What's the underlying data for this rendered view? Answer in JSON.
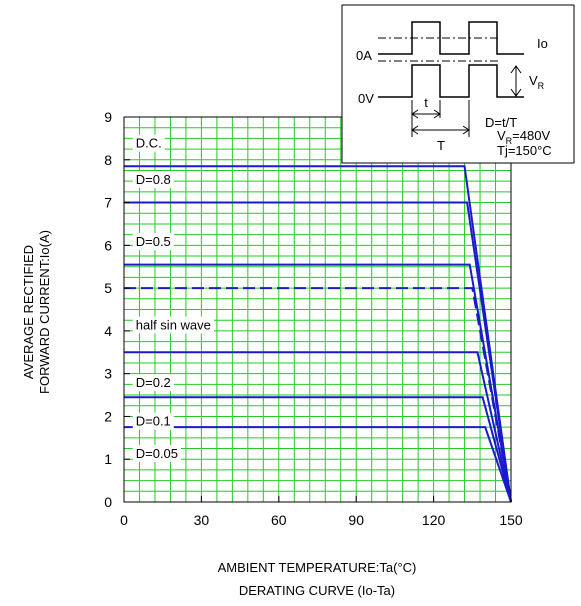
{
  "chart_data": {
    "type": "line",
    "xlabel": "AMBIENT TEMPERATURE:Ta(°C)",
    "caption": "DERATING  CURVE (Io-Ta)",
    "ylabel_line1": "AVERAGE RECTIFIED",
    "ylabel_line2": "FORWARD CURRENT:Io(A)",
    "xlim": [
      0,
      150
    ],
    "ylim": [
      0,
      9
    ],
    "xticks": [
      0,
      30,
      60,
      90,
      120,
      150
    ],
    "yticks": [
      0,
      1,
      2,
      3,
      4,
      5,
      6,
      7,
      8,
      9
    ],
    "grid": true,
    "colors": {
      "grid": "#22cc22",
      "line": "#1a1acc",
      "background": "#ffffff"
    },
    "series": [
      {
        "name": "D.C.",
        "x": [
          0,
          132,
          150
        ],
        "y": [
          7.85,
          7.85,
          0
        ]
      },
      {
        "name": "D=0.8",
        "x": [
          0,
          133,
          150
        ],
        "y": [
          7.0,
          7.0,
          0
        ]
      },
      {
        "name": "D=0.5",
        "x": [
          0,
          134,
          150
        ],
        "y": [
          5.55,
          5.55,
          0
        ]
      },
      {
        "name": "half sin wave",
        "style": "dashed",
        "x": [
          0,
          135,
          150
        ],
        "y": [
          5.0,
          5.0,
          0
        ]
      },
      {
        "name": "D=0.2",
        "x": [
          0,
          137,
          150
        ],
        "y": [
          3.5,
          3.5,
          0
        ]
      },
      {
        "name": "D=0.1",
        "x": [
          0,
          139,
          150
        ],
        "y": [
          2.45,
          2.45,
          0
        ]
      },
      {
        "name": "D=0.05",
        "x": [
          0,
          140,
          150
        ],
        "y": [
          1.75,
          1.75,
          0
        ]
      }
    ],
    "inset": {
      "io_label": "Io",
      "zero_a": "0A",
      "zero_v": "0V",
      "vr_label": "V",
      "vr_sub": "R",
      "t_label": "t",
      "T_label": "T",
      "duty_formula": "D=t/T",
      "vr_value_prefix": "V",
      "vr_value_sub": "R",
      "vr_value": "=480V",
      "tj_value": "Tj=150°C"
    }
  }
}
